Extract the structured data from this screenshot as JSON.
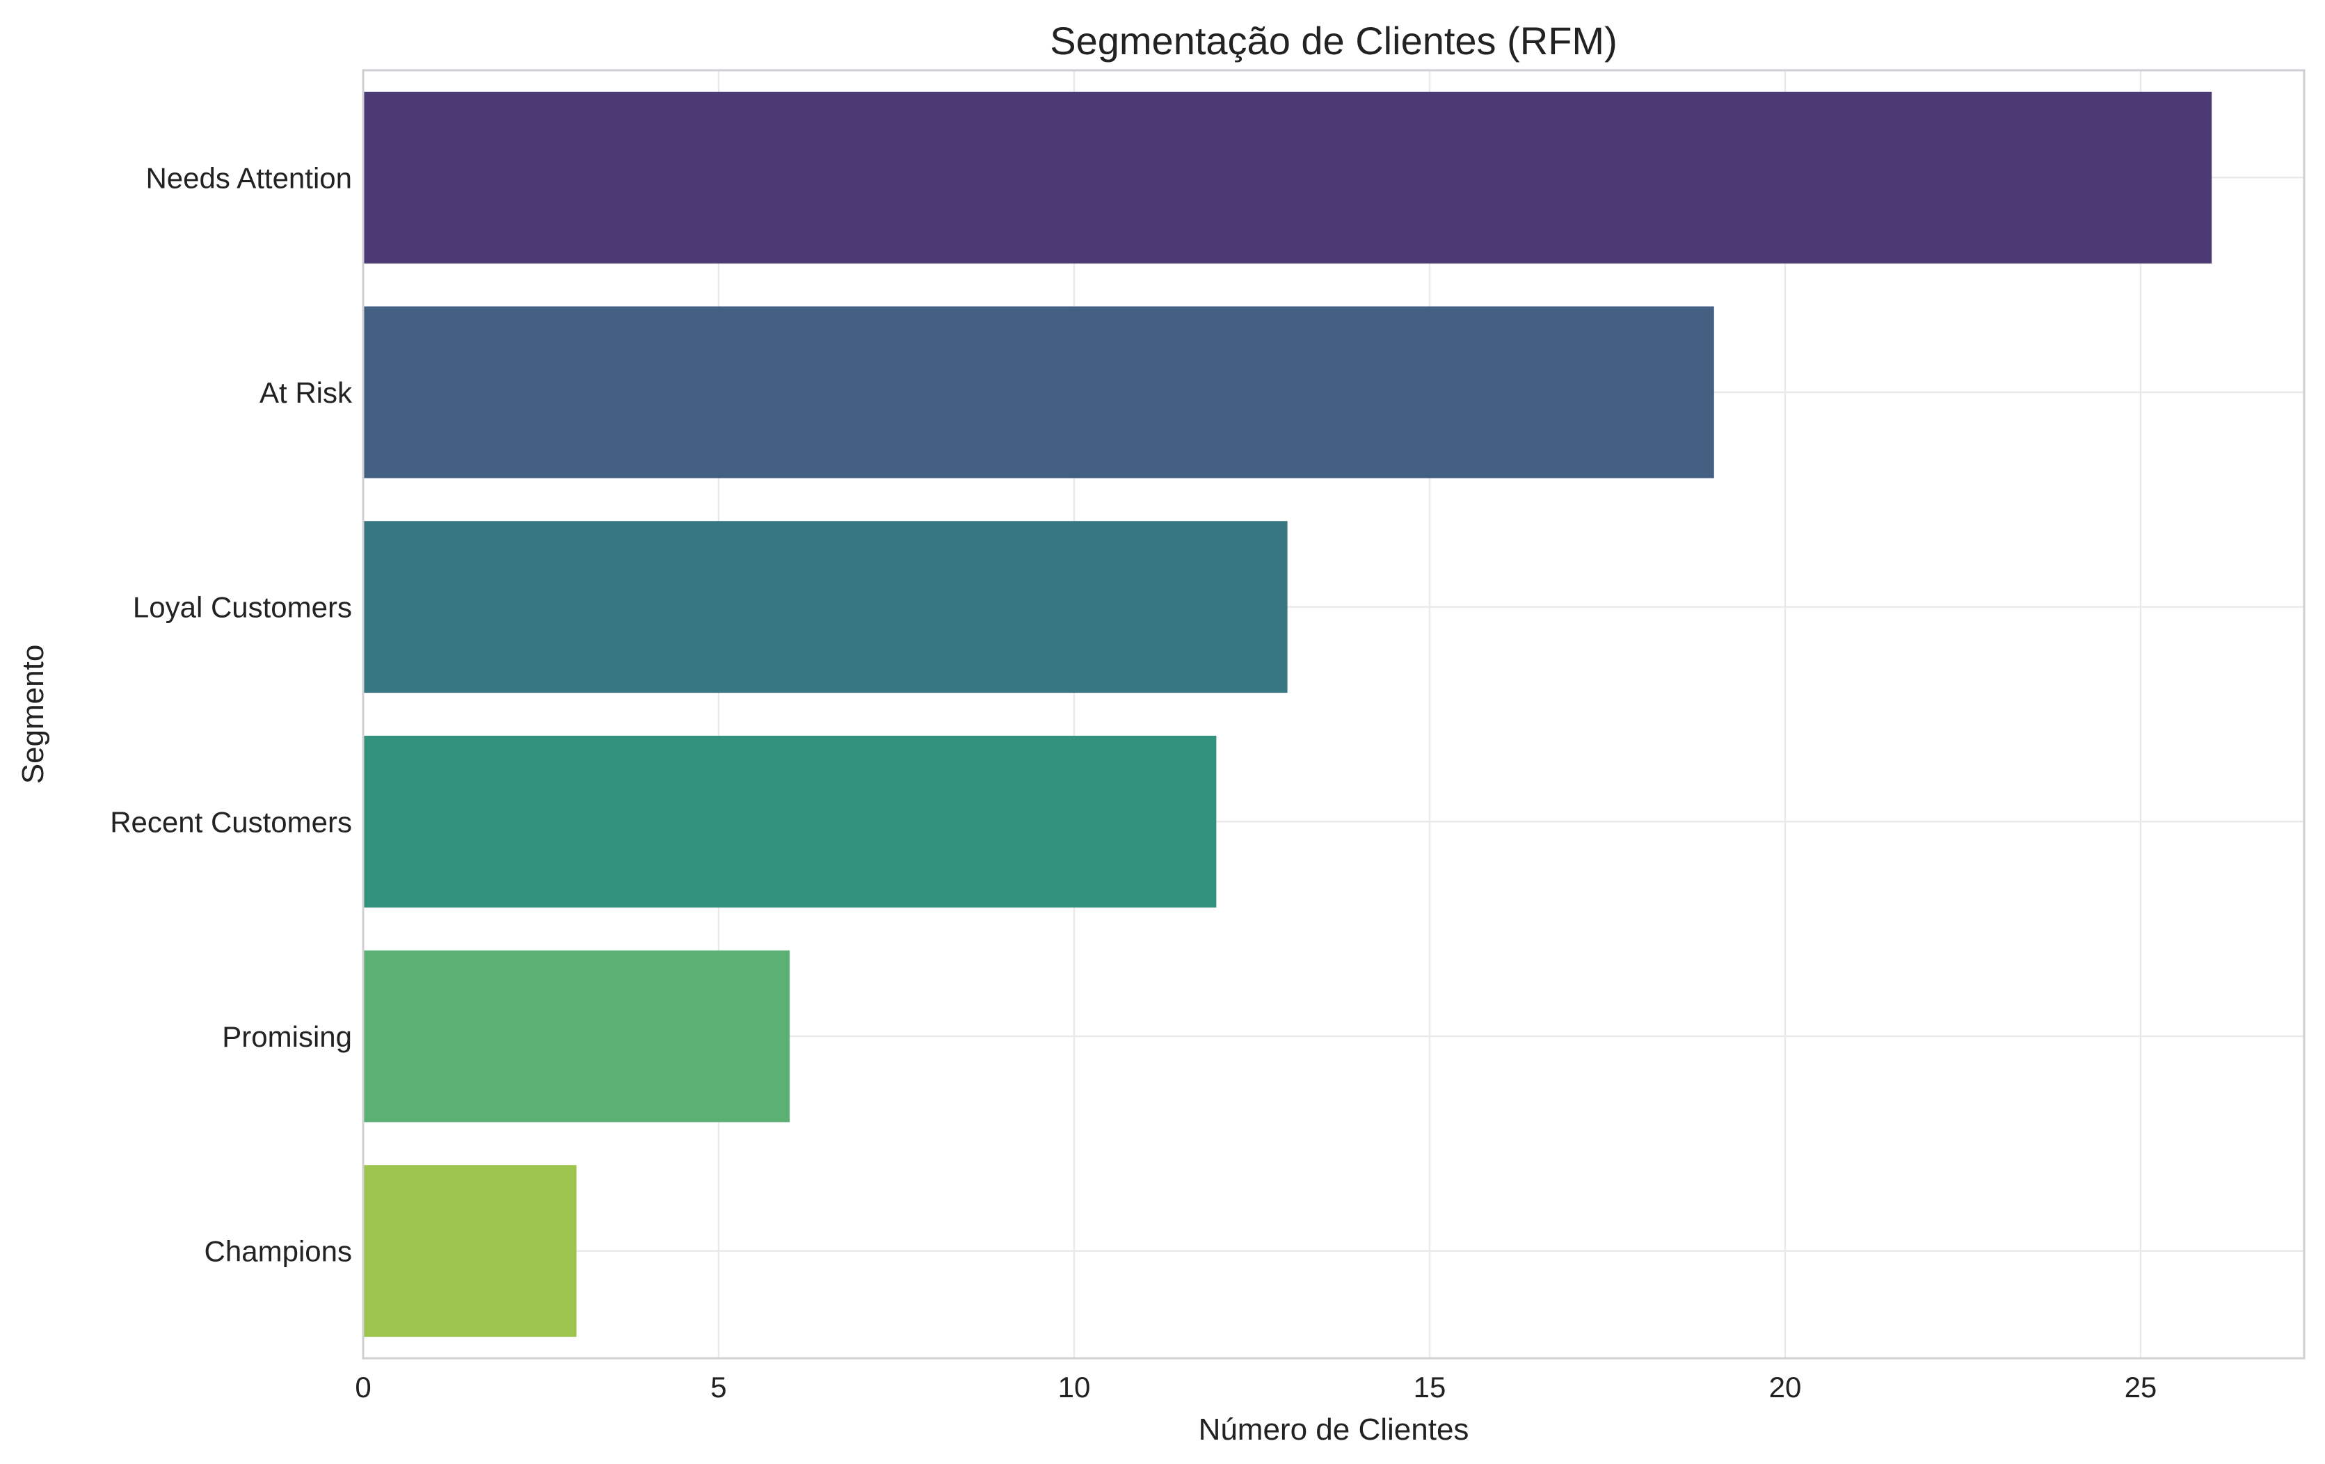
{
  "chart_data": {
    "type": "bar",
    "orientation": "horizontal",
    "title": "Segmentação de Clientes (RFM)",
    "xlabel": "Número de Clientes",
    "ylabel": "Segmento",
    "categories": [
      "Needs Attention",
      "At Risk",
      "Loyal Customers",
      "Recent Customers",
      "Promising",
      "Champions"
    ],
    "values": [
      26,
      19,
      13,
      12,
      6,
      3
    ],
    "colors": [
      "#4b3a74",
      "#435f82",
      "#377782",
      "#33927e",
      "#5bb174",
      "#9dc54e"
    ],
    "xlim": [
      0,
      27.3
    ],
    "xticks": [
      0,
      5,
      10,
      15,
      20,
      25
    ],
    "grid": true,
    "legend": "none"
  }
}
